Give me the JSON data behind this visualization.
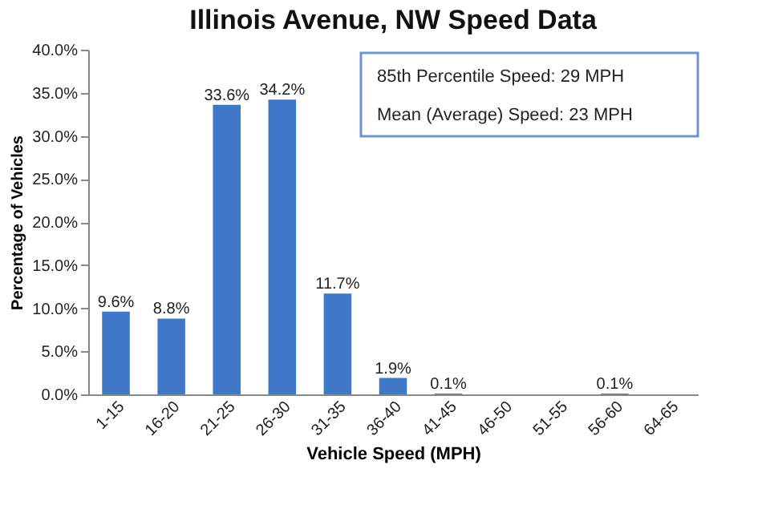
{
  "chart_data": {
    "type": "bar",
    "title": "Illinois Avenue, NW Speed Data",
    "xlabel": "Vehicle Speed (MPH)",
    "ylabel": "Percentage of Vehicles",
    "categories": [
      "1-15",
      "16-20",
      "21-25",
      "26-30",
      "31-35",
      "36-40",
      "41-45",
      "46-50",
      "51-55",
      "56-60",
      "64-65"
    ],
    "values": [
      9.6,
      8.8,
      33.6,
      34.2,
      11.7,
      1.9,
      0.1,
      0,
      0,
      0.1,
      0
    ],
    "value_labels": [
      "9.6%",
      "8.8%",
      "33.6%",
      "34.2%",
      "11.7%",
      "1.9%",
      "0.1%",
      null,
      null,
      "0.1%",
      null
    ],
    "color": "#3f78c8",
    "ylim": [
      0,
      40
    ],
    "yticks": [
      {
        "value": 0,
        "label": "0.0%"
      },
      {
        "value": 5,
        "label": "5.0%"
      },
      {
        "value": 10,
        "label": "10.0%"
      },
      {
        "value": 15,
        "label": "15.0%"
      },
      {
        "value": 20,
        "label": "20.0%"
      },
      {
        "value": 25,
        "label": "25.0%"
      },
      {
        "value": 30,
        "label": "30.0%"
      },
      {
        "value": 35,
        "label": "35.0%"
      },
      {
        "value": 40,
        "label": "40.0%"
      }
    ],
    "annotations": [
      "85th Percentile Speed: 29 MPH",
      "Mean (Average) Speed: 23 MPH"
    ],
    "grid": false
  }
}
